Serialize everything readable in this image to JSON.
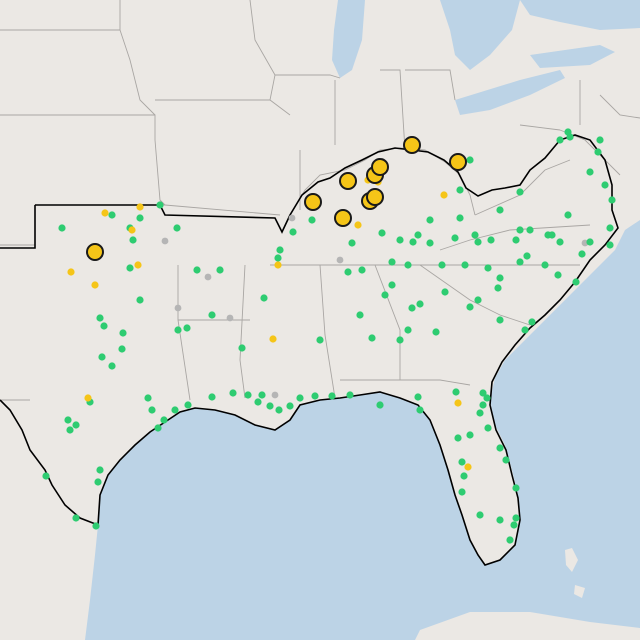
{
  "map": {
    "colors": {
      "land": "#ebe8e4",
      "water": "#bcd3e6",
      "border": "#a9a6a3",
      "region_outline": "#000000",
      "marker_green": "#2ecc71",
      "marker_yellow": "#f5c518",
      "marker_gray": "#b5b5b5",
      "marker_stroke": "#1a1a1a"
    },
    "marker_types": [
      "green-dot",
      "small-yellow-dot",
      "large-yellow-circle",
      "gray-dot"
    ],
    "marker_counts": {
      "green": 150,
      "small_yellow": 16,
      "large_yellow": 10,
      "gray": 8
    }
  }
}
